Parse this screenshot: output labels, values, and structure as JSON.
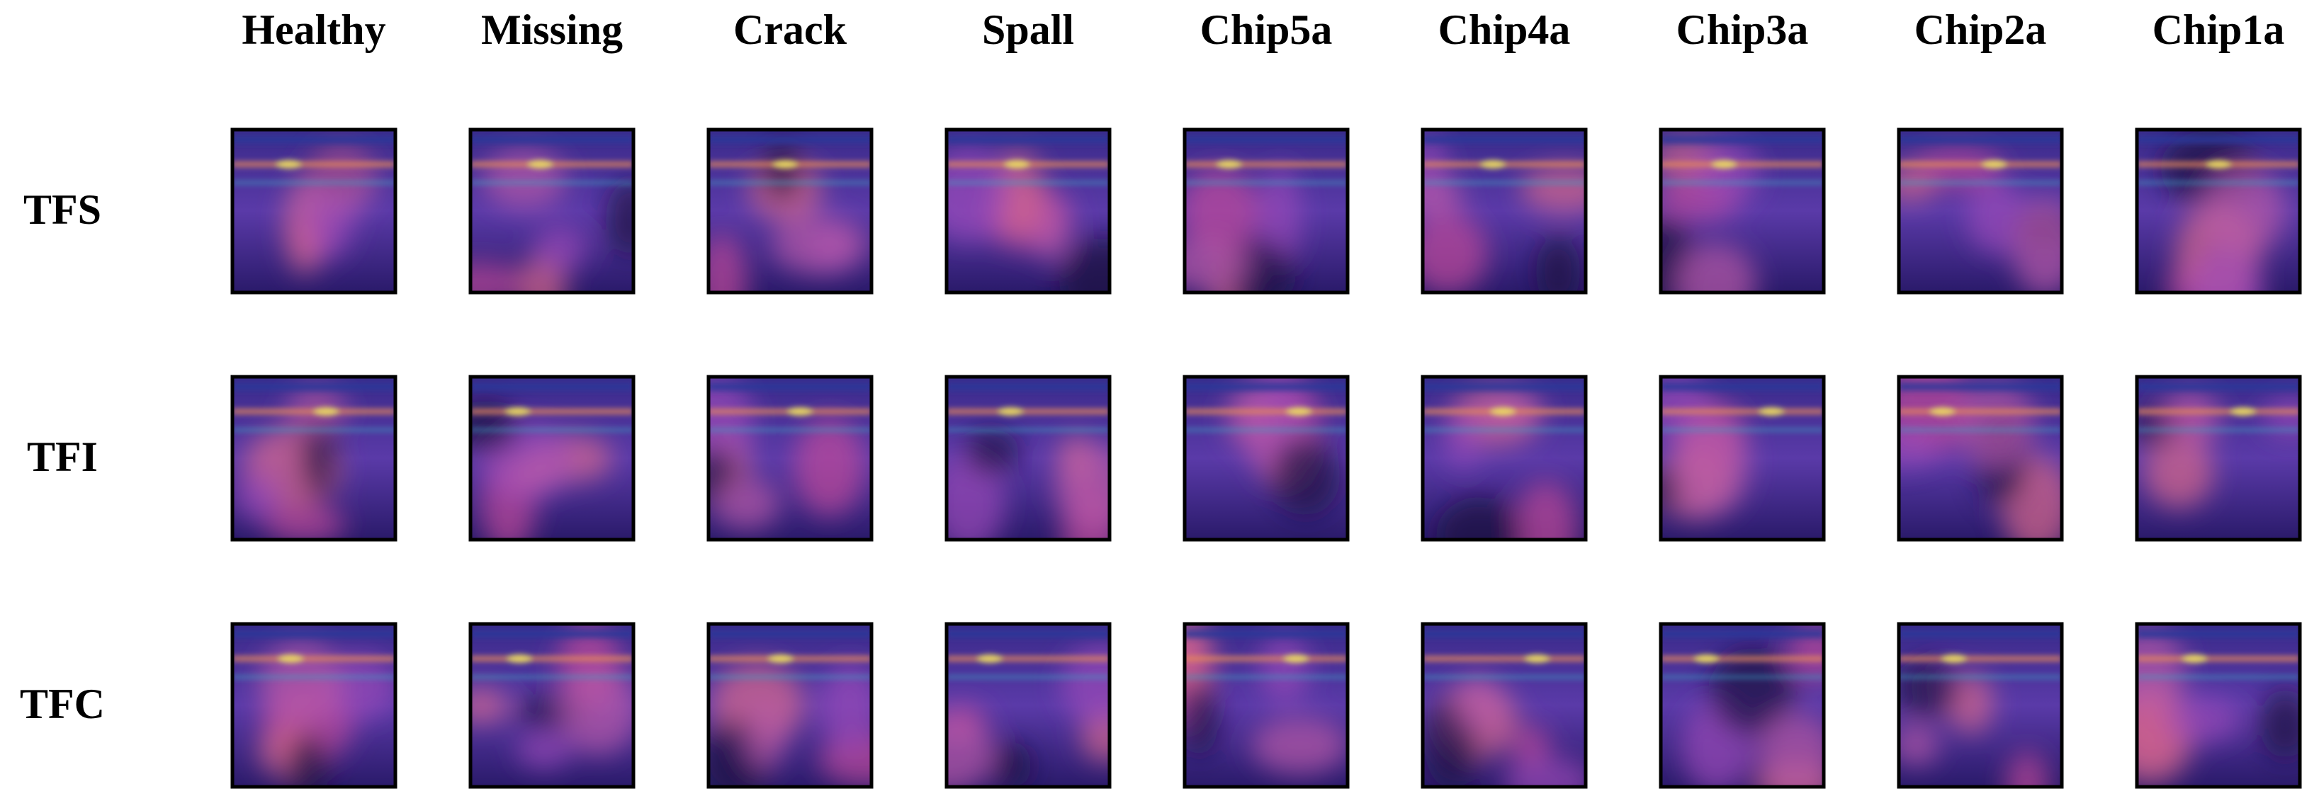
{
  "columns": [
    "Healthy",
    "Missing",
    "Crack",
    "Spall",
    "Chip5a",
    "Chip4a",
    "Chip3a",
    "Chip2a",
    "Chip1a"
  ],
  "rows": [
    "TFS",
    "TFI",
    "TFC"
  ]
}
